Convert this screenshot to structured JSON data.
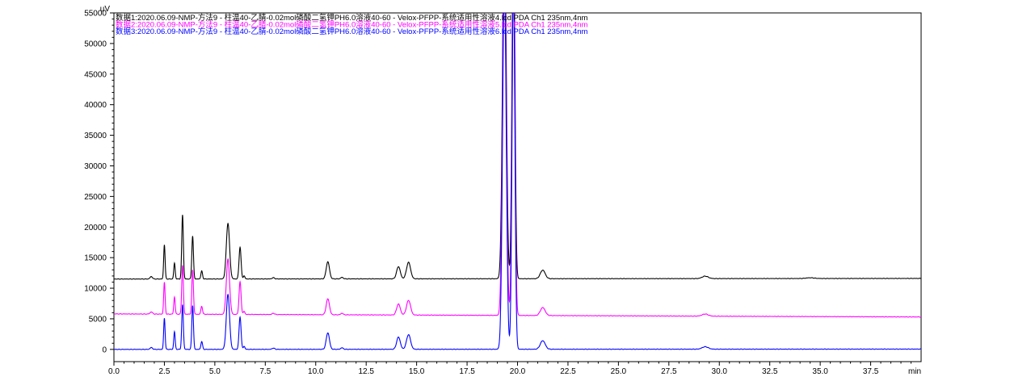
{
  "chart_data": {
    "type": "line",
    "ylabel": "uV",
    "xlabel": "min",
    "xlim": [
      0,
      40
    ],
    "ylim": [
      -2000,
      55000
    ],
    "x_ticks": [
      0.0,
      2.5,
      5.0,
      7.5,
      10.0,
      12.5,
      15.0,
      17.5,
      20.0,
      22.5,
      25.0,
      27.5,
      30.0,
      32.5,
      35.0,
      37.5
    ],
    "x_tick_labels": [
      "0.0",
      "2.5",
      "5.0",
      "7.5",
      "10.0",
      "12.5",
      "15.0",
      "17.5",
      "20.0",
      "22.5",
      "25.0",
      "27.5",
      "30.0",
      "32.5",
      "35.0",
      "37.5"
    ],
    "y_ticks": [
      0,
      5000,
      10000,
      15000,
      20000,
      25000,
      30000,
      35000,
      40000,
      45000,
      50000,
      55000
    ],
    "y_tick_labels": [
      "0",
      "5000",
      "10000",
      "15000",
      "20000",
      "25000",
      "30000",
      "35000",
      "40000",
      "45000",
      "50000",
      "55000"
    ],
    "grid": false,
    "legend_position": "top-left",
    "series": [
      {
        "name": "数据1:2020.06.09-NMP-方法9 - 柱温40-乙腈-0.02mol磷酸二氢钾PH6.0溶液40-60 - Velox-PFPP-系统适用性溶液4.lcd PDA Ch1 235nm,4nm",
        "color": "#000000",
        "baseline": 11500,
        "baseline_end": 11600,
        "peaks": [
          {
            "rt": 1.85,
            "h": 400,
            "w": 0.06
          },
          {
            "rt": 2.5,
            "h": 5600,
            "w": 0.035
          },
          {
            "rt": 3.0,
            "h": 2600,
            "w": 0.035
          },
          {
            "rt": 3.4,
            "h": 10500,
            "w": 0.04
          },
          {
            "rt": 3.9,
            "h": 7000,
            "w": 0.04
          },
          {
            "rt": 4.35,
            "h": 1300,
            "w": 0.04
          },
          {
            "rt": 5.65,
            "h": 9100,
            "w": 0.08
          },
          {
            "rt": 6.25,
            "h": 5200,
            "w": 0.05
          },
          {
            "rt": 6.45,
            "h": 500,
            "w": 0.04
          },
          {
            "rt": 7.9,
            "h": 200,
            "w": 0.06
          },
          {
            "rt": 10.6,
            "h": 2800,
            "w": 0.08
          },
          {
            "rt": 11.3,
            "h": 250,
            "w": 0.06
          },
          {
            "rt": 14.1,
            "h": 2000,
            "w": 0.09
          },
          {
            "rt": 14.6,
            "h": 2700,
            "w": 0.1
          },
          {
            "rt": 19.35,
            "h": 60000,
            "w": 0.09
          },
          {
            "rt": 19.8,
            "h": 60000,
            "w": 0.07
          },
          {
            "rt": 21.25,
            "h": 1400,
            "w": 0.12
          },
          {
            "rt": 29.3,
            "h": 400,
            "w": 0.15
          },
          {
            "rt": 34.5,
            "h": 120,
            "w": 0.2
          }
        ]
      },
      {
        "name": "数据2:2020.06.09-NMP-方法9 - 柱温40-乙腈-0.02mol磷酸二氢钾PH6.0溶液40-60 - Velox-PFPP-系统适用性溶液5.lcd PDA Ch1 235nm,4nm",
        "color": "#ff00ff",
        "baseline": 5800,
        "baseline_end": 5300,
        "peaks": [
          {
            "rt": 1.85,
            "h": 350,
            "w": 0.06
          },
          {
            "rt": 2.5,
            "h": 5200,
            "w": 0.035
          },
          {
            "rt": 3.0,
            "h": 2800,
            "w": 0.035
          },
          {
            "rt": 3.4,
            "h": 8000,
            "w": 0.04
          },
          {
            "rt": 3.9,
            "h": 7200,
            "w": 0.04
          },
          {
            "rt": 4.35,
            "h": 1300,
            "w": 0.04
          },
          {
            "rt": 5.65,
            "h": 9000,
            "w": 0.08
          },
          {
            "rt": 6.25,
            "h": 5300,
            "w": 0.05
          },
          {
            "rt": 6.45,
            "h": 500,
            "w": 0.04
          },
          {
            "rt": 7.9,
            "h": 200,
            "w": 0.06
          },
          {
            "rt": 10.6,
            "h": 2600,
            "w": 0.08
          },
          {
            "rt": 11.3,
            "h": 250,
            "w": 0.06
          },
          {
            "rt": 14.1,
            "h": 1800,
            "w": 0.09
          },
          {
            "rt": 14.6,
            "h": 2400,
            "w": 0.1
          },
          {
            "rt": 19.35,
            "h": 60000,
            "w": 0.09
          },
          {
            "rt": 19.8,
            "h": 60000,
            "w": 0.07
          },
          {
            "rt": 21.25,
            "h": 1300,
            "w": 0.12
          },
          {
            "rt": 29.3,
            "h": 350,
            "w": 0.15
          }
        ]
      },
      {
        "name": "数据3:2020.06.09-NMP-方法9 - 柱温40-乙腈-0.02mol磷酸二氢钾PH6.0溶液40-60 - Velox-PFPP-系统适用性溶液6.lcd PDA Ch1 235nm,4nm",
        "color": "#0000ff",
        "baseline": 0,
        "baseline_end": 50,
        "peaks": [
          {
            "rt": 1.85,
            "h": 300,
            "w": 0.06
          },
          {
            "rt": 2.5,
            "h": 5100,
            "w": 0.035
          },
          {
            "rt": 3.0,
            "h": 2900,
            "w": 0.035
          },
          {
            "rt": 3.4,
            "h": 7300,
            "w": 0.04
          },
          {
            "rt": 3.9,
            "h": 7200,
            "w": 0.04
          },
          {
            "rt": 4.35,
            "h": 1300,
            "w": 0.04
          },
          {
            "rt": 5.65,
            "h": 9000,
            "w": 0.08
          },
          {
            "rt": 6.25,
            "h": 5300,
            "w": 0.05
          },
          {
            "rt": 6.45,
            "h": 500,
            "w": 0.04
          },
          {
            "rt": 7.9,
            "h": 200,
            "w": 0.06
          },
          {
            "rt": 10.6,
            "h": 2700,
            "w": 0.08
          },
          {
            "rt": 11.3,
            "h": 250,
            "w": 0.06
          },
          {
            "rt": 14.1,
            "h": 2000,
            "w": 0.09
          },
          {
            "rt": 14.6,
            "h": 2400,
            "w": 0.1
          },
          {
            "rt": 19.35,
            "h": 60000,
            "w": 0.09
          },
          {
            "rt": 19.8,
            "h": 60000,
            "w": 0.07
          },
          {
            "rt": 21.25,
            "h": 1400,
            "w": 0.12
          },
          {
            "rt": 29.3,
            "h": 400,
            "w": 0.15
          }
        ]
      }
    ]
  }
}
